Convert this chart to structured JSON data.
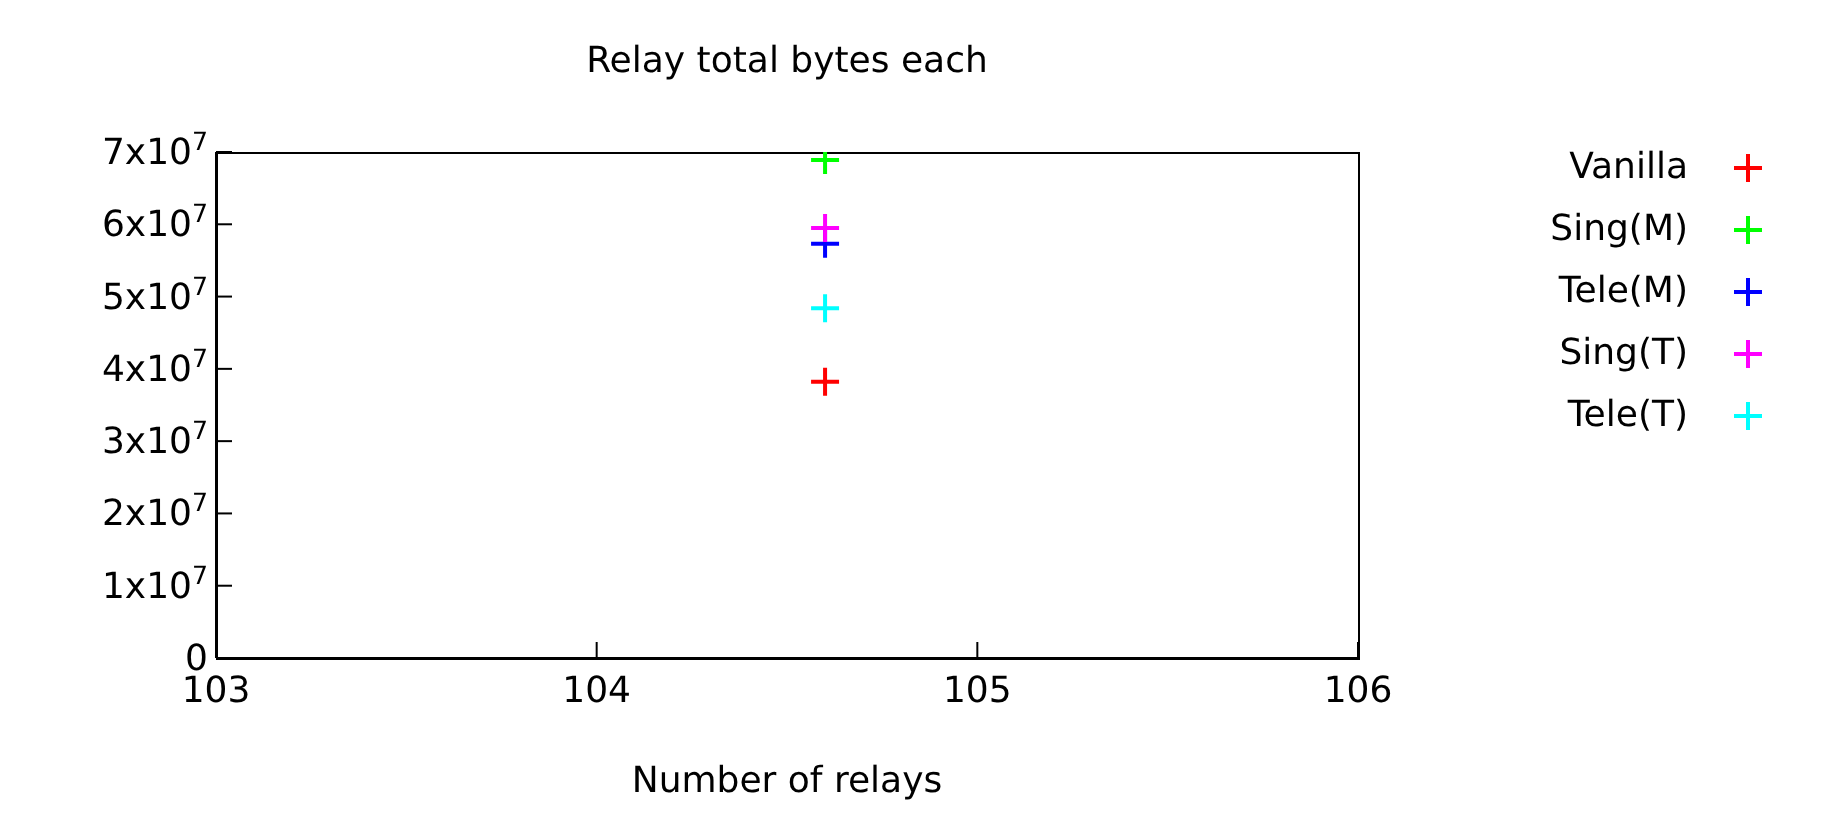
{
  "chart_data": {
    "type": "scatter",
    "title": "Relay total bytes each",
    "xlabel": "Number of relays",
    "marker": "cross",
    "legend": "right",
    "grid": false,
    "xlim": [
      103,
      106
    ],
    "xticks": [
      103,
      104,
      105,
      106
    ],
    "ylim": [
      0,
      70000000
    ],
    "yticks": [
      0,
      {
        "value": 10000000,
        "label": "1x10$^{7}$"
      },
      {
        "value": 20000000,
        "label": "2x10$^{7}$"
      },
      {
        "value": 30000000,
        "label": "3x10$^{7}$"
      },
      {
        "value": 40000000,
        "label": "4x10$^{7}$"
      },
      {
        "value": 50000000,
        "label": "5x10$^{7}$"
      },
      {
        "value": 60000000,
        "label": "6x10$^{7}$"
      },
      {
        "value": 70000000,
        "label": "7x10$^{7}$"
      }
    ],
    "x": [
      104.6
    ],
    "series": [
      {
        "name": "Vanilla",
        "color": "#ff0000",
        "values": [
          38200000
        ]
      },
      {
        "name": "Sing(M)",
        "color": "#00ff00",
        "values": [
          68900000
        ]
      },
      {
        "name": "Tele(M)",
        "color": "#0000ff",
        "values": [
          57300000
        ]
      },
      {
        "name": "Sing(T)",
        "color": "#ff00ff",
        "values": [
          59500000
        ]
      },
      {
        "name": "Tele(T)",
        "color": "#00ffff",
        "values": [
          48400000
        ]
      }
    ]
  }
}
